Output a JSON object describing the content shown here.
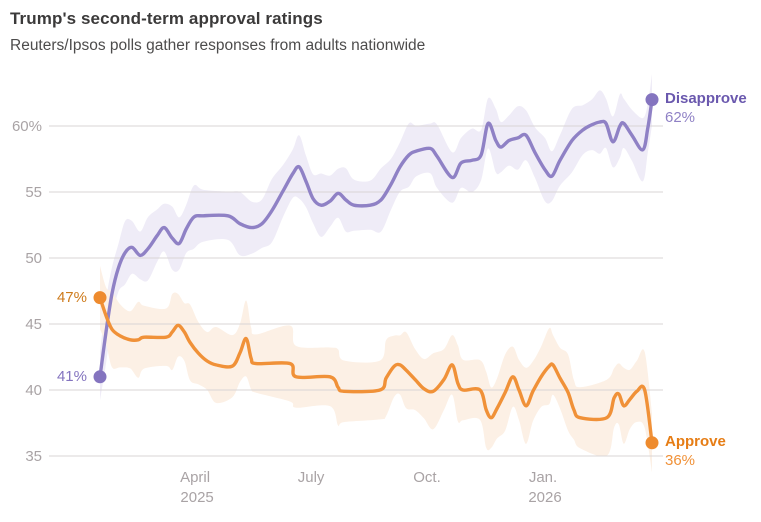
{
  "header": {
    "title": "Trump's second-term approval ratings",
    "subtitle": "Reuters/Ipsos polls gather responses from adults nationwide"
  },
  "colors": {
    "background": "#ffffff",
    "title": "#3b3a3a",
    "subtitle": "#4d4c4c",
    "gridline": "#d8d4d5",
    "axis_text": "#a9a3a5"
  },
  "chart_data": {
    "type": "line",
    "title": "Trump's second-term approval ratings",
    "subtitle": "Reuters/Ipsos polls gather responses from adults nationwide",
    "x_unit": "months since 2025-01-01 (0.54 = late Jan 2025, 14.82 = mid Mar 2026)",
    "ylim": [
      34,
      63.5
    ],
    "grid": "horizontal-only",
    "legend_position": "end-of-line-labels",
    "y_ticks": [
      {
        "value": 60,
        "label": "60%"
      },
      {
        "value": 55,
        "label": "55"
      },
      {
        "value": 50,
        "label": "50"
      },
      {
        "value": 45,
        "label": "45"
      },
      {
        "value": 40,
        "label": "40"
      },
      {
        "value": 35,
        "label": "35"
      }
    ],
    "x_ticks": [
      {
        "month": 3,
        "line1": "April",
        "line2": "2025"
      },
      {
        "month": 6,
        "line1": "July",
        "line2": ""
      },
      {
        "month": 9,
        "line1": "Oct.",
        "line2": ""
      },
      {
        "month": 12,
        "line1": "Jan.",
        "line2": "2026"
      }
    ],
    "series": [
      {
        "id": "disapprove",
        "name": "Disapprove",
        "end_label": "Disapprove",
        "end_value_label": "62%",
        "start_value_label": "41%",
        "start_value": 41,
        "final_value": 62,
        "line_color": "#8f81c5",
        "dot_color": "#8474bf",
        "band_color": "#efecf7",
        "name_color": "#6a58ae",
        "value_color": "#8f81c5",
        "start_label_color": "#8474bf",
        "band_margin": 2.0,
        "points": [
          [
            0.54,
            41
          ],
          [
            0.7,
            44.5
          ],
          [
            0.85,
            47.3
          ],
          [
            1.01,
            49.2
          ],
          [
            1.19,
            50.4
          ],
          [
            1.37,
            50.8
          ],
          [
            1.58,
            50.2
          ],
          [
            1.78,
            50.7
          ],
          [
            2.02,
            51.7
          ],
          [
            2.2,
            52.3
          ],
          [
            2.41,
            51.5
          ],
          [
            2.59,
            51.1
          ],
          [
            2.77,
            52.2
          ],
          [
            2.97,
            53.1
          ],
          [
            3.21,
            53.2
          ],
          [
            3.85,
            53.2
          ],
          [
            4.16,
            52.6
          ],
          [
            4.47,
            52.3
          ],
          [
            4.73,
            52.6
          ],
          [
            4.99,
            53.6
          ],
          [
            5.28,
            55.1
          ],
          [
            5.53,
            56.4
          ],
          [
            5.69,
            56.9
          ],
          [
            5.87,
            55.8
          ],
          [
            6.05,
            54.5
          ],
          [
            6.26,
            54
          ],
          [
            6.49,
            54.3
          ],
          [
            6.7,
            54.9
          ],
          [
            6.9,
            54.4
          ],
          [
            7.11,
            54
          ],
          [
            7.53,
            54
          ],
          [
            7.81,
            54.4
          ],
          [
            8.07,
            55.6
          ],
          [
            8.3,
            56.9
          ],
          [
            8.53,
            57.8
          ],
          [
            8.72,
            58.1
          ],
          [
            9.08,
            58.3
          ],
          [
            9.26,
            57.7
          ],
          [
            9.65,
            56.1
          ],
          [
            9.88,
            57.2
          ],
          [
            10.16,
            57.4
          ],
          [
            10.4,
            57.8
          ],
          [
            10.58,
            60.2
          ],
          [
            10.78,
            58.9
          ],
          [
            10.91,
            58.4
          ],
          [
            11.12,
            58.9
          ],
          [
            11.35,
            59.1
          ],
          [
            11.56,
            59.3
          ],
          [
            11.79,
            58
          ],
          [
            12.05,
            56.7
          ],
          [
            12.23,
            56.2
          ],
          [
            12.44,
            57.4
          ],
          [
            12.75,
            58.9
          ],
          [
            13.03,
            59.7
          ],
          [
            13.27,
            60.1
          ],
          [
            13.47,
            60.3
          ],
          [
            13.63,
            60.2
          ],
          [
            13.81,
            58.8
          ],
          [
            13.99,
            60
          ],
          [
            14.09,
            60.2
          ],
          [
            14.3,
            59.3
          ],
          [
            14.58,
            58.2
          ],
          [
            14.71,
            59.8
          ],
          [
            14.82,
            62
          ]
        ]
      },
      {
        "id": "approve",
        "name": "Approve",
        "end_label": "Approve",
        "end_value_label": "36%",
        "start_value_label": "47%",
        "start_value": 47,
        "final_value": 36,
        "line_color": "#f09138",
        "dot_color": "#ee8b2e",
        "band_color": "#fcf0e5",
        "name_color": "#e67d15",
        "value_color": "#f09138",
        "start_label_color": "#ce7b1c",
        "band_margin": 2.4,
        "points": [
          [
            0.54,
            47
          ],
          [
            0.7,
            45.6
          ],
          [
            0.85,
            44.6
          ],
          [
            1.06,
            44.1
          ],
          [
            1.32,
            43.8
          ],
          [
            1.53,
            43.8
          ],
          [
            1.68,
            44
          ],
          [
            2.25,
            44
          ],
          [
            2.41,
            44.4
          ],
          [
            2.56,
            44.9
          ],
          [
            2.72,
            44.4
          ],
          [
            2.87,
            43.6
          ],
          [
            3.08,
            42.8
          ],
          [
            3.31,
            42.2
          ],
          [
            3.54,
            41.9
          ],
          [
            3.96,
            41.8
          ],
          [
            4.16,
            42.8
          ],
          [
            4.32,
            43.9
          ],
          [
            4.45,
            42.4
          ],
          [
            4.58,
            42
          ],
          [
            5.46,
            42
          ],
          [
            5.61,
            41
          ],
          [
            6.49,
            41
          ],
          [
            6.7,
            40.2
          ],
          [
            6.85,
            39.9
          ],
          [
            7.78,
            40
          ],
          [
            7.94,
            40.9
          ],
          [
            8.15,
            41.8
          ],
          [
            8.3,
            41.9
          ],
          [
            8.46,
            41.5
          ],
          [
            8.69,
            40.8
          ],
          [
            8.92,
            40.1
          ],
          [
            9.16,
            39.9
          ],
          [
            9.44,
            40.8
          ],
          [
            9.65,
            41.9
          ],
          [
            9.8,
            40.5
          ],
          [
            9.93,
            40
          ],
          [
            10.37,
            40
          ],
          [
            10.53,
            38.5
          ],
          [
            10.66,
            37.9
          ],
          [
            10.81,
            38.6
          ],
          [
            11.02,
            39.8
          ],
          [
            11.22,
            41
          ],
          [
            11.38,
            40
          ],
          [
            11.56,
            38.8
          ],
          [
            11.74,
            39.9
          ],
          [
            11.95,
            41
          ],
          [
            12.16,
            41.8
          ],
          [
            12.26,
            41.9
          ],
          [
            12.44,
            40.9
          ],
          [
            12.65,
            39.8
          ],
          [
            12.8,
            38.5
          ],
          [
            12.96,
            37.9
          ],
          [
            13.65,
            37.9
          ],
          [
            13.84,
            39.4
          ],
          [
            13.96,
            39.7
          ],
          [
            14.09,
            38.8
          ],
          [
            14.25,
            39.3
          ],
          [
            14.43,
            39.9
          ],
          [
            14.63,
            40
          ],
          [
            14.82,
            36
          ]
        ]
      }
    ]
  }
}
